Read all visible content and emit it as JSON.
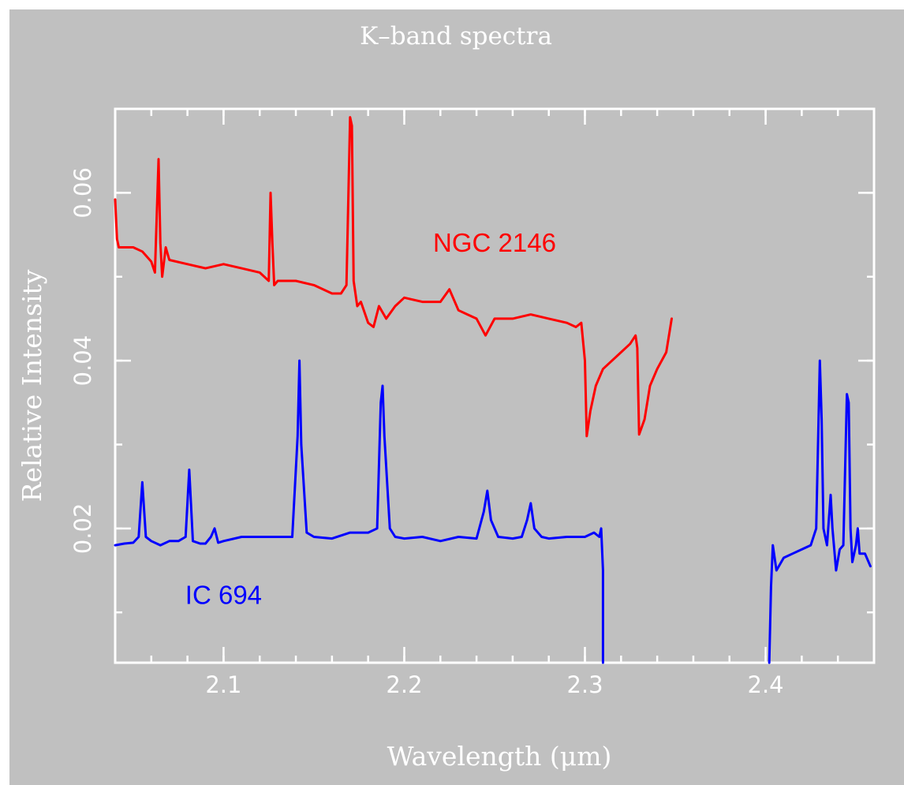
{
  "chart_data": {
    "type": "line",
    "title": "K–band spectra",
    "xlabel": "Wavelength (μm)",
    "ylabel": "Relative Intensity",
    "xlim": [
      2.04,
      2.46
    ],
    "ylim": [
      0.004,
      0.07
    ],
    "xticks": [
      {
        "value": 2.1,
        "label": "2.1"
      },
      {
        "value": 2.2,
        "label": "2.2"
      },
      {
        "value": 2.3,
        "label": "2.3"
      },
      {
        "value": 2.4,
        "label": "2.4"
      }
    ],
    "xticks_minor_step": 0.02,
    "yticks": [
      {
        "value": 0.02,
        "label": "0.02"
      },
      {
        "value": 0.04,
        "label": "0.04"
      },
      {
        "value": 0.06,
        "label": "0.06"
      }
    ],
    "yticks_minor_step": 0.01,
    "grid": false,
    "legend": "none",
    "series": [
      {
        "name": "NGC 2146",
        "color": "#ff0000",
        "x": [
          2.04,
          2.041,
          2.042,
          2.05,
          2.055,
          2.06,
          2.062,
          2.064,
          2.065,
          2.066,
          2.068,
          2.07,
          2.08,
          2.09,
          2.1,
          2.11,
          2.12,
          2.125,
          2.126,
          2.127,
          2.128,
          2.13,
          2.14,
          2.15,
          2.16,
          2.165,
          2.168,
          2.17,
          2.171,
          2.172,
          2.174,
          2.176,
          2.18,
          2.183,
          2.186,
          2.19,
          2.195,
          2.2,
          2.21,
          2.22,
          2.225,
          2.23,
          2.235,
          2.24,
          2.245,
          2.25,
          2.26,
          2.27,
          2.28,
          2.29,
          2.295,
          2.298,
          2.3,
          2.301,
          2.303,
          2.306,
          2.31,
          2.32,
          2.325,
          2.328,
          2.329,
          2.33,
          2.333,
          2.336,
          2.34,
          2.345,
          2.348
        ],
        "y": [
          0.0592,
          0.0545,
          0.0535,
          0.0535,
          0.053,
          0.0518,
          0.0505,
          0.064,
          0.054,
          0.05,
          0.0535,
          0.052,
          0.0515,
          0.051,
          0.0515,
          0.051,
          0.0505,
          0.0495,
          0.06,
          0.054,
          0.049,
          0.0495,
          0.0495,
          0.049,
          0.048,
          0.048,
          0.049,
          0.069,
          0.068,
          0.0495,
          0.0465,
          0.047,
          0.0445,
          0.044,
          0.0465,
          0.045,
          0.0465,
          0.0475,
          0.047,
          0.047,
          0.0485,
          0.046,
          0.0455,
          0.045,
          0.043,
          0.045,
          0.045,
          0.0455,
          0.045,
          0.0445,
          0.044,
          0.0445,
          0.04,
          0.031,
          0.034,
          0.037,
          0.039,
          0.041,
          0.042,
          0.043,
          0.0415,
          0.0312,
          0.033,
          0.037,
          0.039,
          0.041,
          0.045
        ]
      },
      {
        "name": "IC 694",
        "color": "#0000ff",
        "x": [
          2.04,
          2.045,
          2.05,
          2.053,
          2.055,
          2.057,
          2.06,
          2.065,
          2.07,
          2.075,
          2.079,
          2.081,
          2.083,
          2.087,
          2.09,
          2.093,
          2.095,
          2.097,
          2.1,
          2.11,
          2.12,
          2.13,
          2.138,
          2.141,
          2.142,
          2.143,
          2.146,
          2.15,
          2.16,
          2.17,
          2.18,
          2.185,
          2.187,
          2.188,
          2.189,
          2.192,
          2.195,
          2.2,
          2.21,
          2.22,
          2.23,
          2.24,
          2.244,
          2.246,
          2.248,
          2.252,
          2.26,
          2.265,
          2.268,
          2.27,
          2.272,
          2.276,
          2.28,
          2.29,
          2.3,
          2.305,
          2.308,
          2.309,
          2.31,
          2.31
        ],
        "y": [
          0.018,
          0.0182,
          0.0183,
          0.019,
          0.0255,
          0.019,
          0.0185,
          0.018,
          0.0185,
          0.0185,
          0.019,
          0.027,
          0.0185,
          0.0182,
          0.0182,
          0.019,
          0.02,
          0.0183,
          0.0185,
          0.019,
          0.019,
          0.019,
          0.019,
          0.031,
          0.04,
          0.03,
          0.0195,
          0.019,
          0.0188,
          0.0195,
          0.0195,
          0.02,
          0.035,
          0.037,
          0.031,
          0.02,
          0.019,
          0.0188,
          0.019,
          0.0185,
          0.019,
          0.0188,
          0.022,
          0.0245,
          0.021,
          0.019,
          0.0188,
          0.019,
          0.021,
          0.023,
          0.02,
          0.019,
          0.0188,
          0.019,
          0.019,
          0.0195,
          0.019,
          0.02,
          0.015,
          0.004
        ]
      },
      {
        "name": "IC 694",
        "color": "#0000ff",
        "x": [
          2.402,
          2.403,
          2.404,
          2.406,
          2.41,
          2.415,
          2.42,
          2.425,
          2.428,
          2.43,
          2.431,
          2.432,
          2.434,
          2.436,
          2.437,
          2.439,
          2.441,
          2.443,
          2.445,
          2.446,
          2.447,
          2.448,
          2.45,
          2.451,
          2.452,
          2.455,
          2.458
        ],
        "y": [
          0.004,
          0.013,
          0.018,
          0.015,
          0.0165,
          0.017,
          0.0175,
          0.018,
          0.02,
          0.04,
          0.033,
          0.02,
          0.018,
          0.024,
          0.02,
          0.015,
          0.0175,
          0.018,
          0.036,
          0.035,
          0.02,
          0.016,
          0.018,
          0.02,
          0.017,
          0.017,
          0.0155
        ]
      }
    ],
    "annotations": [
      {
        "text": "NGC 2146",
        "color": "#ff0000",
        "x": 2.25,
        "y": 0.053
      },
      {
        "text": "IC 694",
        "color": "#0000ff",
        "x": 2.1,
        "y": 0.011
      }
    ]
  }
}
